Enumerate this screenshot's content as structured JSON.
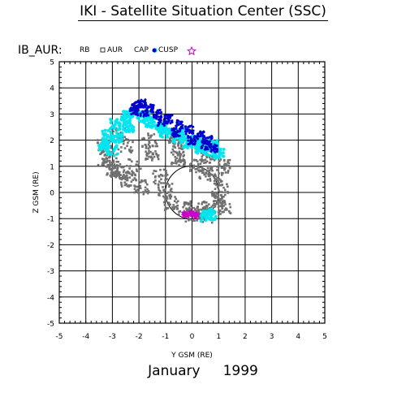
{
  "header": {
    "title": "IKI - Satellite Situation Center (SSC)"
  },
  "footer": {
    "month": "January",
    "year": "1999"
  },
  "chart_data": {
    "type": "scatter",
    "title": "IB_AUR:",
    "xlabel": "Y GSM (RE)",
    "ylabel": "Z GSM (RE)",
    "xlim": [
      -5,
      5
    ],
    "ylim": [
      -5,
      5
    ],
    "xticks": [
      "-5",
      "-4",
      "-3",
      "-2",
      "-1",
      "0",
      "1",
      "2",
      "3",
      "4",
      "5"
    ],
    "yticks": [
      "-5",
      "-4",
      "-3",
      "-2",
      "-1",
      "0",
      "1",
      "2",
      "3",
      "4",
      "5"
    ],
    "grid": true,
    "legend_position": "top-left",
    "earth_circle": {
      "center": [
        0,
        0
      ],
      "radius_re": 1
    },
    "series": [
      {
        "name": "RB",
        "marker": "none",
        "color": "#000000"
      },
      {
        "name": "AUR",
        "marker": "square",
        "color": "#707070"
      },
      {
        "name": "CAP",
        "marker": "asterisk",
        "color": "#00e5ee"
      },
      {
        "name": "CUSP",
        "marker": "dot",
        "color": "#0000cc"
      },
      {
        "name": "",
        "marker": "star",
        "color": "#cc00cc"
      }
    ],
    "regions": {
      "aur": {
        "color": "#707070",
        "points": [
          [
            -3.1,
            1.3
          ],
          [
            -2.5,
            1.8
          ],
          [
            -1.5,
            1.5
          ],
          [
            -0.5,
            1.3
          ],
          [
            0.5,
            0.7
          ],
          [
            1.1,
            0.2
          ],
          [
            1.2,
            -0.6
          ],
          [
            0.6,
            -0.9
          ],
          [
            0,
            -0.85
          ],
          [
            -0.8,
            -0.4
          ],
          [
            -1.9,
            0.2
          ],
          [
            -2.8,
            0.8
          ],
          [
            -3.3,
            1.3
          ],
          [
            -3.3,
            1.8
          ],
          [
            -2.8,
            2.2
          ],
          [
            -2.2,
            1.0
          ],
          [
            -1.2,
            0.6
          ],
          [
            0.2,
            1.0
          ],
          [
            0.9,
            0.6
          ],
          [
            1.0,
            -0.2
          ],
          [
            0.4,
            -0.6
          ],
          [
            -0.3,
            -0.6
          ],
          [
            -1.0,
            0.1
          ],
          [
            -2.4,
            0.5
          ],
          [
            -3.0,
            0.9
          ],
          [
            -1.6,
            2.0
          ],
          [
            -0.6,
            1.9
          ],
          [
            0.6,
            1.4
          ],
          [
            1.2,
            1.0
          ],
          [
            1.0,
            -0.5
          ]
        ]
      },
      "cap": {
        "color": "#00e5ee",
        "points": [
          [
            -3.3,
            1.8
          ],
          [
            -3.2,
            2.2
          ],
          [
            -2.9,
            2.6
          ],
          [
            -2.5,
            2.9
          ],
          [
            -2.2,
            3.0
          ],
          [
            -1.8,
            2.9
          ],
          [
            -1.4,
            2.6
          ],
          [
            -1.0,
            2.3
          ],
          [
            -0.6,
            2.1
          ],
          [
            -0.2,
            1.9
          ],
          [
            0.3,
            1.7
          ],
          [
            0.7,
            1.6
          ],
          [
            1.0,
            1.5
          ],
          [
            0.8,
            1.8
          ],
          [
            0.2,
            2.0
          ],
          [
            -0.4,
            2.3
          ],
          [
            -1.1,
            2.5
          ],
          [
            -1.6,
            2.7
          ],
          [
            -2.4,
            2.5
          ],
          [
            -2.8,
            2.1
          ],
          [
            -3.0,
            1.6
          ],
          [
            0.7,
            -0.85
          ],
          [
            0.5,
            -0.9
          ]
        ]
      },
      "cusp": {
        "color": "#0000cc",
        "points": [
          [
            -2.1,
            3.3
          ],
          [
            -1.9,
            3.4
          ],
          [
            -1.6,
            3.2
          ],
          [
            -1.3,
            3.0
          ],
          [
            -0.9,
            2.8
          ],
          [
            -0.5,
            2.6
          ],
          [
            -0.1,
            2.4
          ],
          [
            0.3,
            2.2
          ],
          [
            0.6,
            2.0
          ],
          [
            0.8,
            1.7
          ],
          [
            -2.2,
            3.1
          ],
          [
            -1.8,
            3.0
          ],
          [
            -1.2,
            2.7
          ],
          [
            -0.6,
            2.3
          ],
          [
            0.0,
            2.0
          ],
          [
            0.5,
            1.8
          ]
        ]
      },
      "star_points": [
        [
          0.0,
          -0.8
        ],
        [
          -0.2,
          -0.85
        ],
        [
          0.1,
          -0.9
        ]
      ]
    }
  }
}
